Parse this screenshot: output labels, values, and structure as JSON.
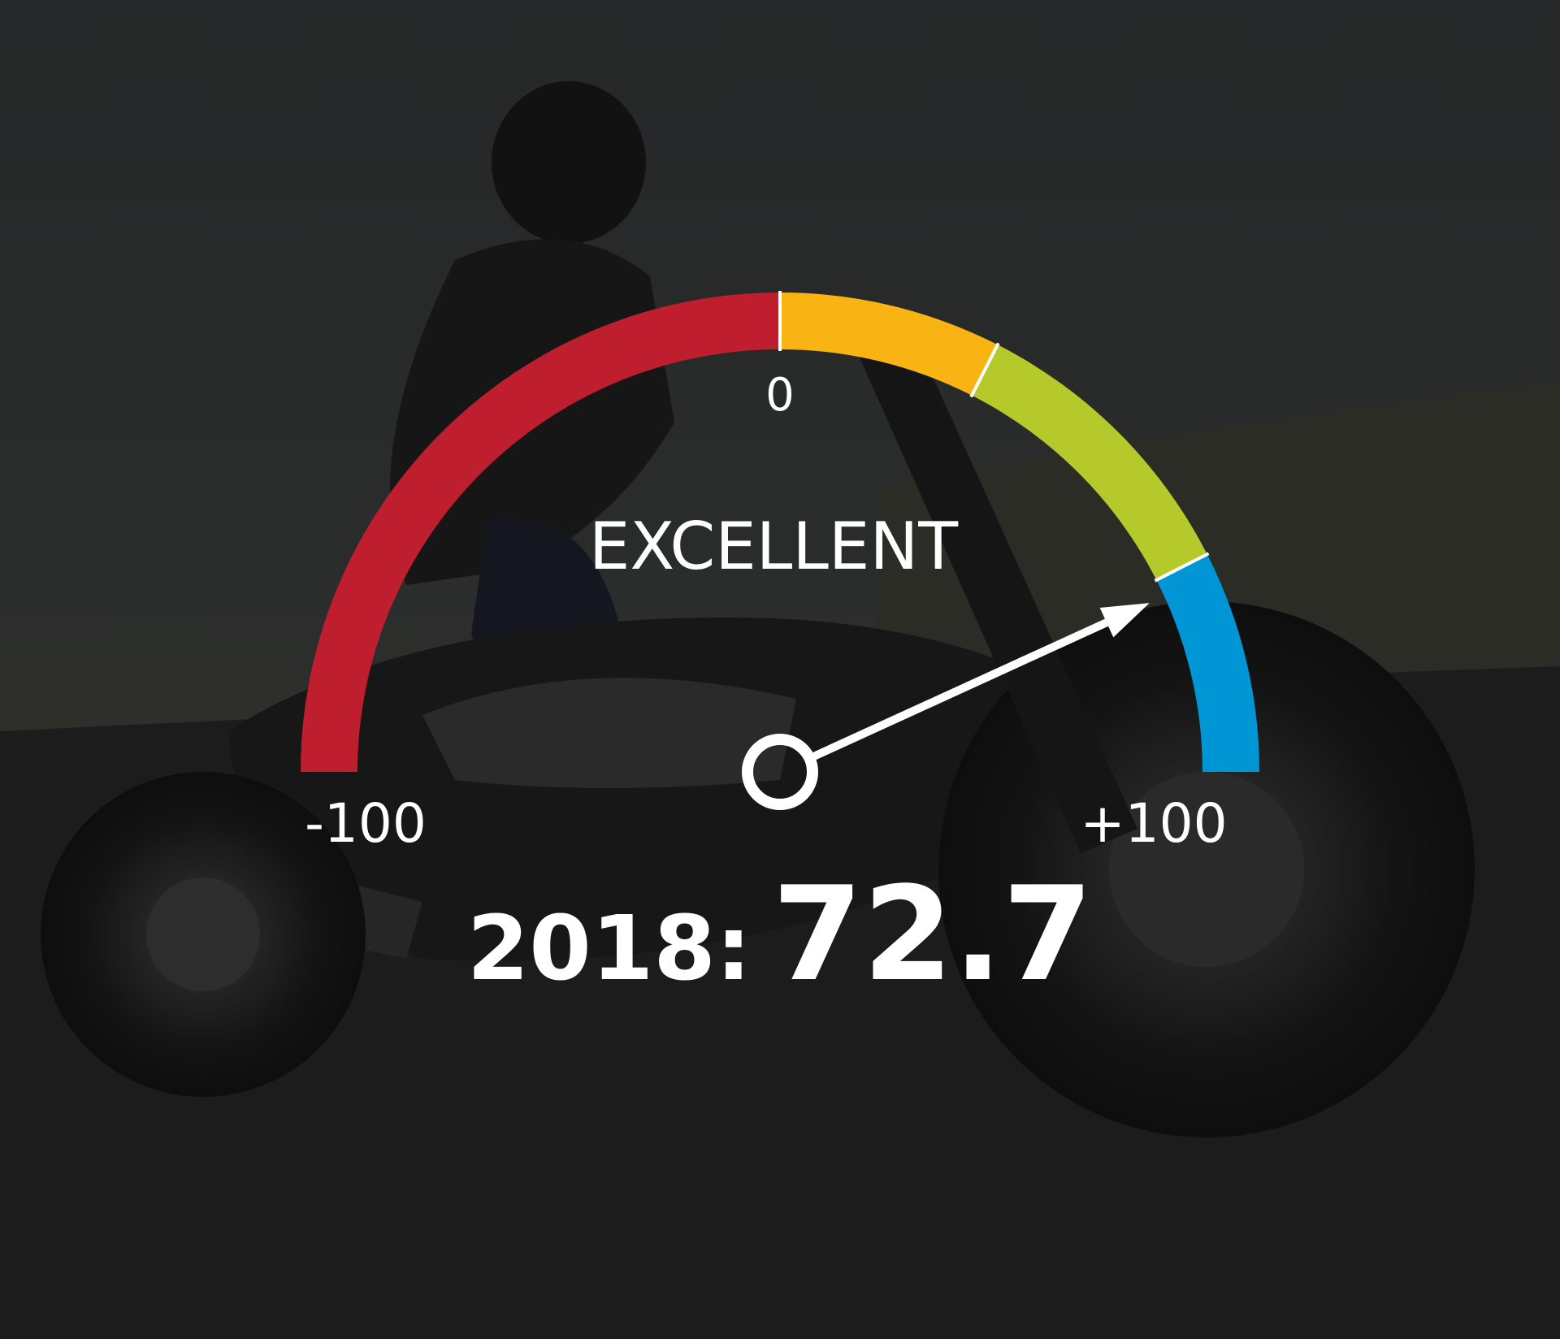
{
  "chart_data": {
    "type": "gauge",
    "value": 72.7,
    "range": [
      -100,
      100
    ],
    "rating_label": "EXCELLENT",
    "tick_labels": {
      "min": "-100",
      "mid": "0",
      "max": "+100"
    },
    "year_label": "2018:",
    "value_label": "72.7",
    "bands": [
      {
        "from": -100,
        "to": 0,
        "color": "#be1e2d"
      },
      {
        "from": 0,
        "to": 30,
        "color": "#f9b414"
      },
      {
        "from": 30,
        "to": 70,
        "color": "#b6c92b"
      },
      {
        "from": 70,
        "to": 100,
        "color": "#0096d6"
      }
    ]
  },
  "background": {
    "description_icon": "motorcycle-rider-photo"
  }
}
